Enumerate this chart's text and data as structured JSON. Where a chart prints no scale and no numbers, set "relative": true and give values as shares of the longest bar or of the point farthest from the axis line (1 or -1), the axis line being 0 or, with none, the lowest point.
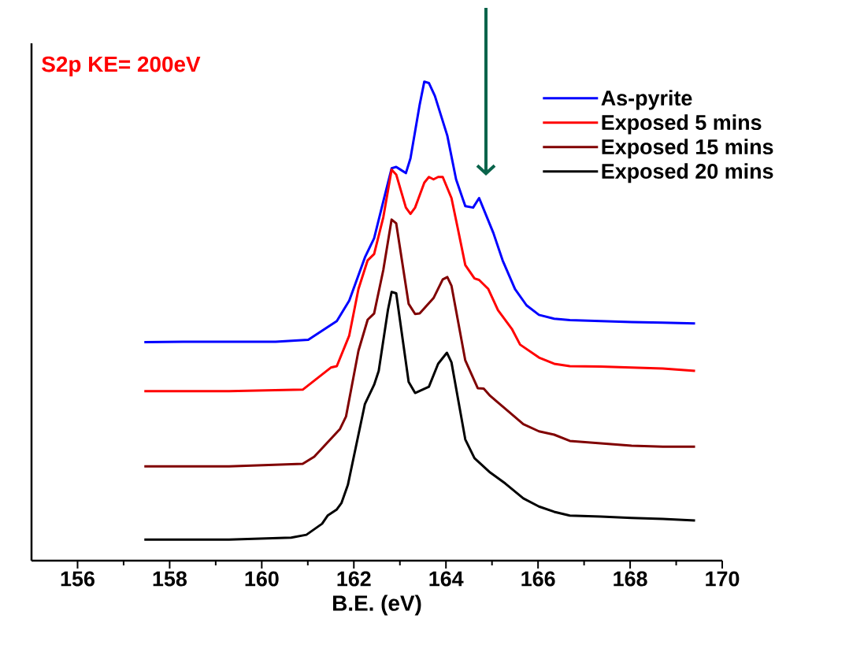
{
  "chart_data": {
    "type": "line",
    "relative": true,
    "xlabel": "B.E. (eV)",
    "xlim": [
      155,
      170
    ],
    "xticks": [
      156,
      158,
      160,
      162,
      164,
      166,
      168,
      170
    ],
    "legend": "top right",
    "marker": "none",
    "line_style": "solid",
    "annotations": [
      "S2p KE= 200eV"
    ],
    "series": [
      {
        "name": "As-pyrite",
        "color": "#0000ff",
        "x": [
          157.45,
          158.29,
          159.29,
          160.3,
          161.01,
          161.31,
          161.63,
          161.9,
          162.24,
          162.44,
          162.64,
          162.82,
          162.92,
          163.13,
          163.23,
          163.43,
          163.53,
          163.63,
          163.76,
          164.03,
          164.22,
          164.42,
          164.59,
          164.72,
          165.03,
          165.23,
          165.5,
          165.75,
          166.02,
          166.35,
          166.69,
          167.36,
          168.03,
          168.71,
          169.41
        ],
        "values": [
          0.456,
          0.457,
          0.457,
          0.457,
          0.461,
          0.48,
          0.5,
          0.543,
          0.633,
          0.673,
          0.75,
          0.819,
          0.822,
          0.809,
          0.84,
          0.952,
          1.0,
          0.997,
          0.97,
          0.887,
          0.796,
          0.74,
          0.737,
          0.757,
          0.684,
          0.627,
          0.567,
          0.533,
          0.513,
          0.505,
          0.502,
          0.5,
          0.498,
          0.497,
          0.495
        ]
      },
      {
        "name": "Exposed 5 mins",
        "color": "#ff0000",
        "x": [
          157.45,
          159.29,
          160.89,
          161.5,
          161.63,
          161.9,
          162.1,
          162.3,
          162.44,
          162.64,
          162.82,
          162.92,
          163.13,
          163.23,
          163.33,
          163.53,
          163.63,
          163.73,
          163.83,
          163.93,
          164.12,
          164.25,
          164.42,
          164.62,
          164.72,
          164.92,
          165.13,
          165.43,
          165.61,
          166.02,
          166.35,
          166.69,
          167.36,
          168.03,
          168.71,
          169.41
        ],
        "values": [
          0.354,
          0.354,
          0.357,
          0.403,
          0.406,
          0.47,
          0.567,
          0.627,
          0.64,
          0.717,
          0.816,
          0.806,
          0.737,
          0.724,
          0.737,
          0.789,
          0.801,
          0.796,
          0.801,
          0.801,
          0.757,
          0.697,
          0.617,
          0.589,
          0.586,
          0.567,
          0.523,
          0.484,
          0.451,
          0.424,
          0.411,
          0.406,
          0.405,
          0.403,
          0.401,
          0.396
        ]
      },
      {
        "name": "Exposed 15 mins",
        "color": "#800000",
        "x": [
          157.45,
          159.29,
          160.89,
          161.14,
          161.43,
          161.7,
          161.83,
          162.1,
          162.3,
          162.44,
          162.64,
          162.82,
          162.92,
          163.19,
          163.33,
          163.43,
          163.73,
          163.93,
          164.03,
          164.12,
          164.42,
          164.69,
          164.82,
          164.96,
          165.29,
          165.68,
          166.02,
          166.35,
          166.69,
          167.36,
          168.03,
          168.71,
          169.41
        ],
        "values": [
          0.197,
          0.197,
          0.202,
          0.217,
          0.247,
          0.275,
          0.301,
          0.438,
          0.503,
          0.516,
          0.607,
          0.712,
          0.704,
          0.536,
          0.515,
          0.516,
          0.548,
          0.587,
          0.592,
          0.574,
          0.418,
          0.36,
          0.359,
          0.344,
          0.317,
          0.285,
          0.27,
          0.263,
          0.25,
          0.245,
          0.24,
          0.238,
          0.238
        ]
      },
      {
        "name": "Exposed 20 mins",
        "color": "#000000",
        "x": [
          157.45,
          159.29,
          160.64,
          160.97,
          161.31,
          161.43,
          161.63,
          161.73,
          161.87,
          162.24,
          162.44,
          162.54,
          162.74,
          162.82,
          162.92,
          163.19,
          163.33,
          163.63,
          163.83,
          164.02,
          164.12,
          164.42,
          164.62,
          164.96,
          165.29,
          165.68,
          166.02,
          166.35,
          166.69,
          167.36,
          168.03,
          168.71,
          169.41
        ],
        "values": [
          0.044,
          0.044,
          0.048,
          0.054,
          0.077,
          0.094,
          0.107,
          0.12,
          0.158,
          0.327,
          0.367,
          0.396,
          0.523,
          0.561,
          0.558,
          0.373,
          0.35,
          0.363,
          0.411,
          0.434,
          0.414,
          0.253,
          0.214,
          0.184,
          0.161,
          0.13,
          0.113,
          0.102,
          0.094,
          0.092,
          0.089,
          0.087,
          0.084
        ]
      }
    ]
  }
}
